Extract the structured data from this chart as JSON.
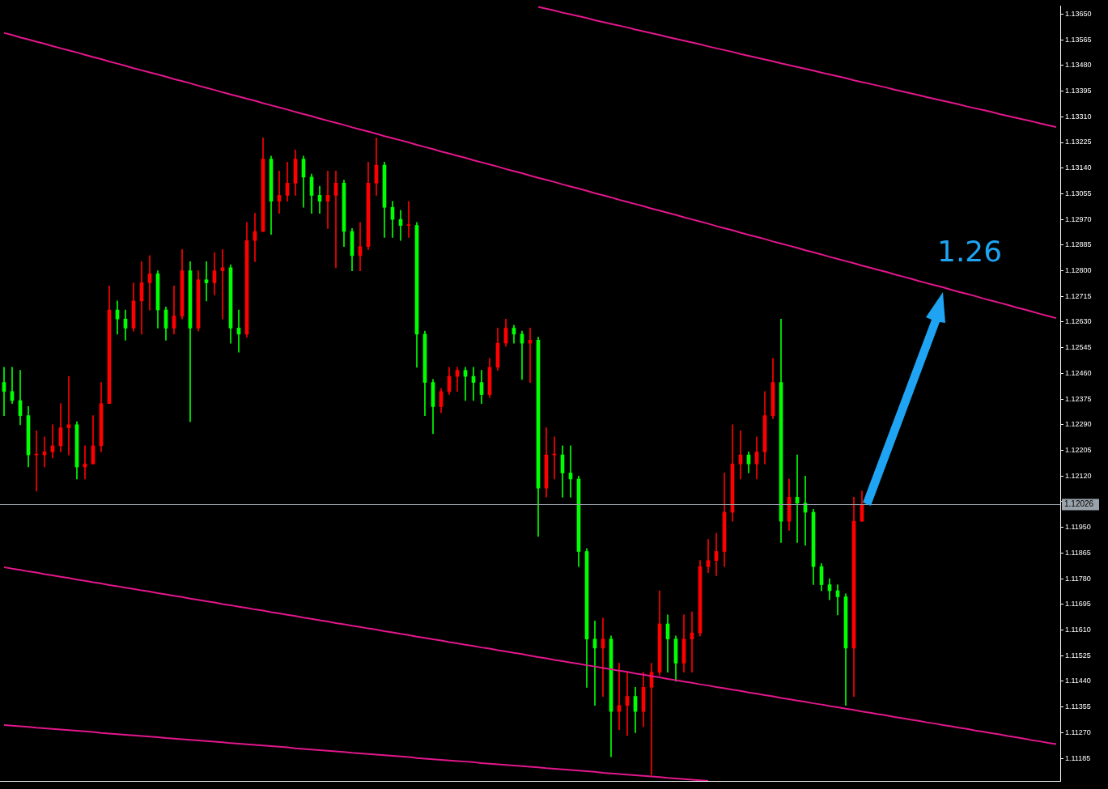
{
  "chart_data": {
    "type": "candlestick",
    "categories": [
      null,
      null,
      null,
      null,
      null,
      null,
      null,
      null,
      null,
      null,
      null,
      null,
      null,
      null,
      null,
      null,
      null,
      null,
      null,
      null,
      null,
      null,
      null,
      null,
      null,
      null,
      null,
      null,
      null,
      null,
      null,
      null,
      null,
      null,
      null,
      null,
      null,
      null,
      null,
      null,
      null,
      null,
      null,
      null,
      null,
      null,
      null,
      null,
      null,
      null,
      null,
      null,
      null,
      null,
      null,
      null,
      null,
      null,
      null,
      null,
      null,
      null,
      null,
      null,
      null,
      null,
      null,
      null,
      null,
      null,
      null,
      null,
      null,
      null,
      null,
      null,
      null,
      null,
      null,
      null,
      null,
      null,
      null,
      null,
      null,
      null,
      null,
      null,
      null,
      null,
      null,
      null,
      null,
      null,
      null,
      null,
      null,
      null,
      null,
      null,
      null,
      null,
      null,
      null,
      null,
      null,
      null,
      null,
      null,
      null,
      null,
      null,
      null,
      null,
      null,
      null,
      null,
      null,
      null,
      null,
      null,
      null,
      null,
      null,
      null,
      null,
      null,
      null,
      null,
      null,
      null
    ],
    "ohlc": [
      [
        1.1243,
        1.1248,
        1.1232,
        1.124
      ],
      [
        1.124,
        1.1248,
        1.1236,
        1.1237
      ],
      [
        1.1237,
        1.1247,
        1.1229,
        1.1232
      ],
      [
        1.1232,
        1.1235,
        1.1215,
        1.1219
      ],
      [
        1.1219,
        1.1227,
        1.1207,
        1.1219
      ],
      [
        1.1219,
        1.1225,
        1.1215,
        1.122
      ],
      [
        1.122,
        1.1229,
        1.1218,
        1.1222
      ],
      [
        1.1222,
        1.1236,
        1.122,
        1.1228
      ],
      [
        1.1228,
        1.1245,
        1.1219,
        1.1229
      ],
      [
        1.1229,
        1.123,
        1.1211,
        1.1215
      ],
      [
        1.1215,
        1.1222,
        1.1211,
        1.1216
      ],
      [
        1.1216,
        1.1232,
        1.1216,
        1.1222
      ],
      [
        1.1222,
        1.1243,
        1.122,
        1.1236
      ],
      [
        1.1236,
        1.1275,
        1.1236,
        1.1267
      ],
      [
        1.1267,
        1.127,
        1.1259,
        1.1264
      ],
      [
        1.1264,
        1.1267,
        1.1257,
        1.1261
      ],
      [
        1.1261,
        1.1276,
        1.126,
        1.127
      ],
      [
        1.127,
        1.1283,
        1.1259,
        1.1276
      ],
      [
        1.1276,
        1.1285,
        1.1267,
        1.1279
      ],
      [
        1.1279,
        1.128,
        1.1261,
        1.1267
      ],
      [
        1.1267,
        1.1268,
        1.1257,
        1.1261
      ],
      [
        1.1261,
        1.1275,
        1.1259,
        1.1265
      ],
      [
        1.1265,
        1.1287,
        1.1264,
        1.128
      ],
      [
        1.128,
        1.1283,
        1.123,
        1.1261
      ],
      [
        1.1261,
        1.128,
        1.126,
        1.1277
      ],
      [
        1.1277,
        1.1283,
        1.127,
        1.1276
      ],
      [
        1.1276,
        1.1286,
        1.1272,
        1.128
      ],
      [
        1.128,
        1.1287,
        1.1264,
        1.1281
      ],
      [
        1.1281,
        1.1282,
        1.1256,
        1.1261
      ],
      [
        1.1261,
        1.1267,
        1.1253,
        1.1259
      ],
      [
        1.1259,
        1.1296,
        1.1258,
        1.129
      ],
      [
        1.129,
        1.1299,
        1.1283,
        1.1293
      ],
      [
        1.1293,
        1.1324,
        1.1293,
        1.1317
      ],
      [
        1.1317,
        1.1318,
        1.1292,
        1.1303
      ],
      [
        1.1303,
        1.1313,
        1.1299,
        1.1305
      ],
      [
        1.1305,
        1.1316,
        1.1303,
        1.1309
      ],
      [
        1.1309,
        1.132,
        1.1305,
        1.1317
      ],
      [
        1.1317,
        1.1318,
        1.1301,
        1.1311
      ],
      [
        1.1311,
        1.1312,
        1.1299,
        1.1305
      ],
      [
        1.1305,
        1.1308,
        1.1299,
        1.1303
      ],
      [
        1.1303,
        1.1313,
        1.1294,
        1.1305
      ],
      [
        1.1305,
        1.1313,
        1.1281,
        1.1309
      ],
      [
        1.1309,
        1.131,
        1.1288,
        1.1293
      ],
      [
        1.1293,
        1.1294,
        1.128,
        1.1285
      ],
      [
        1.1285,
        1.1296,
        1.128,
        1.1288
      ],
      [
        1.1288,
        1.1316,
        1.1287,
        1.1309
      ],
      [
        1.1309,
        1.1324,
        1.1305,
        1.1315
      ],
      [
        1.1315,
        1.1316,
        1.1291,
        1.1301
      ],
      [
        1.1301,
        1.1303,
        1.1291,
        1.1297
      ],
      [
        1.1297,
        1.13,
        1.129,
        1.1295
      ],
      [
        1.1295,
        1.1303,
        1.1291,
        1.1295
      ],
      [
        1.1295,
        1.1296,
        1.1248,
        1.1259
      ],
      [
        1.1259,
        1.126,
        1.1232,
        1.1243
      ],
      [
        1.1243,
        1.1244,
        1.1226,
        1.1235
      ],
      [
        1.1235,
        1.1241,
        1.1233,
        1.124
      ],
      [
        1.124,
        1.1248,
        1.1239,
        1.1245
      ],
      [
        1.1245,
        1.1248,
        1.124,
        1.1247
      ],
      [
        1.1247,
        1.1248,
        1.1237,
        1.1245
      ],
      [
        1.1245,
        1.1248,
        1.1237,
        1.1243
      ],
      [
        1.1243,
        1.1247,
        1.1236,
        1.1239
      ],
      [
        1.1239,
        1.1251,
        1.1238,
        1.1248
      ],
      [
        1.1248,
        1.1261,
        1.1247,
        1.1256
      ],
      [
        1.1256,
        1.1264,
        1.1255,
        1.1261
      ],
      [
        1.1261,
        1.1262,
        1.1256,
        1.1259
      ],
      [
        1.1259,
        1.126,
        1.1244,
        1.1256
      ],
      [
        1.1256,
        1.1261,
        1.1243,
        1.1257
      ],
      [
        1.1257,
        1.1258,
        1.1192,
        1.1208
      ],
      [
        1.1208,
        1.1228,
        1.1205,
        1.1219
      ],
      [
        1.1219,
        1.1225,
        1.1211,
        1.1219
      ],
      [
        1.1219,
        1.1222,
        1.1205,
        1.1213
      ],
      [
        1.1213,
        1.1222,
        1.1205,
        1.1211
      ],
      [
        1.1211,
        1.1212,
        1.1182,
        1.1187
      ],
      [
        1.1187,
        1.1188,
        1.1142,
        1.1158
      ],
      [
        1.1158,
        1.1164,
        1.1136,
        1.1155
      ],
      [
        1.1155,
        1.1165,
        1.1139,
        1.1158
      ],
      [
        1.1158,
        1.1159,
        1.1119,
        1.1134
      ],
      [
        1.1134,
        1.115,
        1.1128,
        1.1136
      ],
      [
        1.1136,
        1.1147,
        1.1126,
        1.1139
      ],
      [
        1.1139,
        1.1142,
        1.1127,
        1.1134
      ],
      [
        1.1134,
        1.1147,
        1.1129,
        1.1142
      ],
      [
        1.1142,
        1.115,
        1.1113,
        1.1147
      ],
      [
        1.1147,
        1.1174,
        1.1146,
        1.1163
      ],
      [
        1.1163,
        1.1166,
        1.1147,
        1.1158
      ],
      [
        1.1158,
        1.1159,
        1.1144,
        1.115
      ],
      [
        1.115,
        1.1166,
        1.1147,
        1.1158
      ],
      [
        1.1158,
        1.1167,
        1.1147,
        1.116
      ],
      [
        1.116,
        1.1184,
        1.1159,
        1.1182
      ],
      [
        1.1182,
        1.1191,
        1.118,
        1.1184
      ],
      [
        1.1184,
        1.1193,
        1.1179,
        1.1187
      ],
      [
        1.1187,
        1.1213,
        1.1182,
        1.12
      ],
      [
        1.12,
        1.1229,
        1.1197,
        1.1216
      ],
      [
        1.1216,
        1.1227,
        1.1211,
        1.1219
      ],
      [
        1.1219,
        1.122,
        1.1213,
        1.1216
      ],
      [
        1.1216,
        1.1225,
        1.1211,
        1.122
      ],
      [
        1.122,
        1.124,
        1.1216,
        1.1232
      ],
      [
        1.1232,
        1.1251,
        1.1231,
        1.1243
      ],
      [
        1.1243,
        1.1264,
        1.119,
        1.1197
      ],
      [
        1.1197,
        1.1211,
        1.1194,
        1.1205
      ],
      [
        1.1205,
        1.1219,
        1.119,
        1.1203
      ],
      [
        1.1203,
        1.1212,
        1.1189,
        1.12
      ],
      [
        1.12,
        1.1201,
        1.1176,
        1.1182
      ],
      [
        1.1182,
        1.1183,
        1.1174,
        1.1176
      ],
      [
        1.1176,
        1.1178,
        1.1171,
        1.1174
      ],
      [
        1.1174,
        1.1176,
        1.1166,
        1.1172
      ],
      [
        1.1172,
        1.1173,
        1.1136,
        1.1155
      ],
      [
        1.1155,
        1.1205,
        1.1139,
        1.1197
      ],
      [
        1.1197,
        1.1207,
        1.1197,
        1.12026
      ],
      null,
      null,
      null,
      null,
      null,
      null,
      null,
      null,
      null,
      null,
      null,
      null,
      null,
      null,
      null,
      null,
      null,
      null,
      null,
      null,
      null,
      null,
      null,
      null
    ],
    "colors": [
      "#00ff00",
      "#00ff00",
      "#00ff00",
      "#00ff00",
      "#ff0000",
      "#ff0000",
      "#ff0000",
      "#ff0000",
      "#ff0000",
      "#00ff00",
      "#ff0000",
      "#ff0000",
      "#ff0000",
      "#ff0000",
      "#00ff00",
      "#00ff00",
      "#ff0000",
      "#ff0000",
      "#ff0000",
      "#00ff00",
      "#00ff00",
      "#ff0000",
      "#ff0000",
      "#00ff00",
      "#ff0000",
      "#00ff00",
      "#ff0000",
      "#ff0000",
      "#00ff00",
      "#00ff00",
      "#ff0000",
      "#ff0000",
      "#ff0000",
      "#00ff00",
      "#ff0000",
      "#ff0000",
      "#ff0000",
      "#00ff00",
      "#00ff00",
      "#00ff00",
      "#ff0000",
      "#ff0000",
      "#00ff00",
      "#00ff00",
      "#ff0000",
      "#ff0000",
      "#ff0000",
      "#00ff00",
      "#00ff00",
      "#00ff00",
      "#ff0000",
      "#00ff00",
      "#00ff00",
      "#00ff00",
      "#ff0000",
      "#ff0000",
      "#ff0000",
      "#00ff00",
      "#00ff00",
      "#00ff00",
      "#ff0000",
      "#ff0000",
      "#ff0000",
      "#00ff00",
      "#00ff00",
      "#ff0000",
      "#00ff00",
      "#ff0000",
      "#ff0000",
      "#00ff00",
      "#00ff00",
      "#00ff00",
      "#00ff00",
      "#00ff00",
      "#ff0000",
      "#00ff00",
      "#ff0000",
      "#ff0000",
      "#00ff00",
      "#ff0000",
      "#ff0000",
      "#ff0000",
      "#00ff00",
      "#00ff00",
      "#ff0000",
      "#ff0000",
      "#ff0000",
      "#ff0000",
      "#ff0000",
      "#ff0000",
      "#ff0000",
      "#ff0000",
      "#00ff00",
      "#ff0000",
      "#ff0000",
      "#ff0000",
      "#00ff00",
      "#ff0000",
      "#00ff00",
      "#00ff00",
      "#00ff00",
      "#00ff00",
      "#00ff00",
      "#00ff00",
      "#00ff00",
      "#ff0000",
      "#ff0000",
      null,
      null,
      null,
      null,
      null,
      null,
      null,
      null,
      null,
      null,
      null,
      null,
      null,
      null,
      null,
      null,
      null,
      null,
      null,
      null,
      null,
      null,
      null,
      null
    ],
    "series": [
      {
        "type": "line",
        "color": "#e3178c",
        "values": [
          null,
          null,
          null,
          null,
          null,
          null,
          null,
          null,
          null,
          null,
          null,
          null,
          null,
          null,
          null,
          null,
          null,
          null,
          null,
          null,
          null,
          null,
          null,
          null,
          null,
          null,
          null,
          null,
          null,
          null,
          null,
          null,
          null,
          null,
          null,
          null,
          null,
          null,
          null,
          null,
          null,
          null,
          null,
          null,
          null,
          null,
          null,
          null,
          null,
          null,
          null,
          null,
          null,
          null,
          null,
          null,
          null,
          null,
          null,
          null,
          null,
          null,
          null,
          null,
          null,
          null,
          1.13674,
          1.13668,
          1.13662,
          1.13655,
          1.13649,
          1.13643,
          1.13637,
          1.1363,
          1.13624,
          1.13618,
          1.13612,
          1.13606,
          1.13599,
          1.13593,
          1.13587,
          1.13581,
          1.13574,
          1.13568,
          1.13562,
          1.13556,
          1.1355,
          1.13543,
          1.13537,
          1.13531,
          1.13525,
          1.13518,
          1.13512,
          1.13506,
          1.135,
          1.13494,
          1.13487,
          1.13481,
          1.13475,
          1.13469,
          1.13463,
          1.13456,
          1.1345,
          1.13444,
          1.13438,
          1.13431,
          1.13425,
          1.13419,
          1.13413,
          1.13407,
          1.134,
          1.13394,
          1.13388,
          1.13382,
          1.13375,
          1.13369,
          1.13363,
          1.13357,
          1.13351,
          1.13344,
          1.13338,
          1.13332,
          1.13326,
          1.13319,
          1.13313,
          1.13307,
          1.13301,
          1.13295,
          1.13288,
          1.13282,
          1.13276
        ]
      },
      {
        "type": "line",
        "color": "#e3178c",
        "values": [
          1.13588,
          1.13581,
          1.13573,
          1.13566,
          1.13559,
          1.13552,
          1.13544,
          1.13537,
          1.1353,
          1.13523,
          1.13515,
          1.13508,
          1.13501,
          1.13493,
          1.13486,
          1.13479,
          1.13471,
          1.13464,
          1.13457,
          1.1345,
          1.13443,
          1.13435,
          1.13428,
          1.13421,
          1.13413,
          1.13406,
          1.13399,
          1.13391,
          1.13384,
          1.13377,
          1.1337,
          1.13363,
          1.13355,
          1.13348,
          1.13341,
          1.13334,
          1.13326,
          1.13319,
          1.13312,
          1.13304,
          1.13297,
          1.1329,
          1.13283,
          1.13275,
          1.13268,
          1.13261,
          1.13254,
          1.13246,
          1.13239,
          1.13232,
          1.13225,
          1.13217,
          1.1321,
          1.13203,
          1.13195,
          1.13188,
          1.13181,
          1.13174,
          1.13166,
          1.13159,
          1.13152,
          1.13145,
          1.13137,
          1.1313,
          1.13123,
          1.13115,
          1.13108,
          1.13101,
          1.13094,
          1.13086,
          1.13079,
          1.13072,
          1.13065,
          1.13057,
          1.1305,
          1.13043,
          1.13035,
          1.13028,
          1.13021,
          1.13014,
          1.13006,
          1.12999,
          1.12992,
          1.12985,
          1.12977,
          1.1297,
          1.12963,
          1.12956,
          1.12948,
          1.12941,
          1.12934,
          1.12926,
          1.12919,
          1.12912,
          1.12905,
          1.12897,
          1.1289,
          1.12883,
          1.12876,
          1.12868,
          1.12861,
          1.12854,
          1.12846,
          1.12839,
          1.12832,
          1.12825,
          1.12817,
          1.1281,
          1.12803,
          1.12796,
          1.12788,
          1.12781,
          1.12774,
          1.12766,
          1.12759,
          1.12752,
          1.12745,
          1.12737,
          1.1273,
          1.12723,
          1.12716,
          1.12708,
          1.12701,
          1.12694,
          1.12687,
          1.12679,
          1.12672,
          1.12665,
          1.12657,
          1.1265,
          1.12643
        ]
      },
      {
        "type": "line",
        "color": "#e3178c",
        "values": [
          1.11818,
          1.11813,
          1.11809,
          1.11804,
          1.118,
          1.11795,
          1.11791,
          1.11786,
          1.11782,
          1.11777,
          1.11773,
          1.11768,
          1.11764,
          1.11759,
          1.11755,
          1.1175,
          1.11746,
          1.11741,
          1.11737,
          1.11732,
          1.11728,
          1.11723,
          1.11719,
          1.11714,
          1.1171,
          1.11705,
          1.11701,
          1.11696,
          1.11692,
          1.11687,
          1.11683,
          1.11678,
          1.11674,
          1.11669,
          1.11665,
          1.1166,
          1.11656,
          1.11651,
          1.11647,
          1.11642,
          1.11638,
          1.11633,
          1.11629,
          1.11624,
          1.1162,
          1.11615,
          1.11611,
          1.11606,
          1.11602,
          1.11597,
          1.11593,
          1.11588,
          1.11584,
          1.11579,
          1.11575,
          1.1157,
          1.11566,
          1.11561,
          1.11557,
          1.11552,
          1.11548,
          1.11543,
          1.11539,
          1.11534,
          1.1153,
          1.11525,
          1.1152,
          1.11516,
          1.11511,
          1.11507,
          1.11502,
          1.11498,
          1.11493,
          1.11489,
          1.11484,
          1.1148,
          1.11475,
          1.11471,
          1.11466,
          1.11462,
          1.11457,
          1.11453,
          1.11448,
          1.11444,
          1.11439,
          1.11435,
          1.1143,
          1.11426,
          1.11421,
          1.11417,
          1.11412,
          1.11408,
          1.11403,
          1.11399,
          1.11394,
          1.1139,
          1.11385,
          1.11381,
          1.11376,
          1.11372,
          1.11367,
          1.11363,
          1.11358,
          1.11354,
          1.11349,
          1.11345,
          1.1134,
          1.11336,
          1.11331,
          1.11327,
          1.11322,
          1.11318,
          1.11313,
          1.11309,
          1.11304,
          1.113,
          1.11295,
          1.11291,
          1.11286,
          1.11282,
          1.11277,
          1.11273,
          1.11268,
          1.11264,
          1.11259,
          1.11255,
          1.1125,
          1.11245,
          1.11241,
          1.11236,
          1.11232
        ]
      },
      {
        "type": "line",
        "color": "#e3178c",
        "values": [
          1.11295,
          1.11293,
          1.11291,
          1.11289,
          1.11286,
          1.11284,
          1.11282,
          1.1128,
          1.11278,
          1.11276,
          1.11274,
          1.11272,
          1.11269,
          1.11267,
          1.11265,
          1.11263,
          1.11261,
          1.11259,
          1.11257,
          1.11255,
          1.11252,
          1.1125,
          1.11248,
          1.11246,
          1.11244,
          1.11242,
          1.1124,
          1.11238,
          1.11235,
          1.11233,
          1.11231,
          1.11229,
          1.11227,
          1.11225,
          1.11223,
          1.11221,
          1.11218,
          1.11216,
          1.11214,
          1.11212,
          1.1121,
          1.11208,
          1.11206,
          1.11203,
          1.11201,
          1.11199,
          1.11197,
          1.11195,
          1.11193,
          1.11191,
          1.11189,
          1.11186,
          1.11184,
          1.11182,
          1.1118,
          1.11178,
          1.11176,
          1.11174,
          1.11172,
          1.11169,
          1.11167,
          1.11165,
          1.11163,
          1.11161,
          1.11159,
          1.11157,
          1.11155,
          1.11152,
          1.1115,
          1.11148,
          1.11146,
          1.11144,
          1.11142,
          1.1114,
          1.11137,
          1.11135,
          1.11133,
          1.11131,
          1.11129,
          1.11127,
          1.11125,
          1.11123,
          1.1112,
          1.11118,
          1.11116,
          1.11114,
          1.11112,
          1.1111,
          null,
          null,
          null,
          null,
          null,
          null,
          null,
          null,
          null,
          null,
          null,
          null,
          null,
          null,
          null,
          null,
          null,
          null,
          null,
          null,
          null,
          null,
          null,
          null,
          null,
          null,
          null,
          null,
          null,
          null,
          null,
          null,
          null,
          null,
          null,
          null,
          null,
          null,
          null,
          null,
          null,
          null,
          null
        ]
      }
    ],
    "ylim": [
      1.1111,
      1.13677
    ],
    "yticks": [
      {
        "value": 1.1365,
        "label": "1.13650"
      },
      {
        "value": 1.13565,
        "label": "1.13565"
      },
      {
        "value": 1.1348,
        "label": "1.13480"
      },
      {
        "value": 1.13395,
        "label": "1.13395"
      },
      {
        "value": 1.1331,
        "label": "1.13310"
      },
      {
        "value": 1.13225,
        "label": "1.13225"
      },
      {
        "value": 1.1314,
        "label": "1.13140"
      },
      {
        "value": 1.13055,
        "label": "1.13055"
      },
      {
        "value": 1.1297,
        "label": "1.12970"
      },
      {
        "value": 1.12885,
        "label": "1.12885"
      },
      {
        "value": 1.128,
        "label": "1.12800"
      },
      {
        "value": 1.12715,
        "label": "1.12715"
      },
      {
        "value": 1.1263,
        "label": "1.12630"
      },
      {
        "value": 1.12545,
        "label": "1.12545"
      },
      {
        "value": 1.1246,
        "label": "1.12460"
      },
      {
        "value": 1.12375,
        "label": "1.12375"
      },
      {
        "value": 1.1229,
        "label": "1.12290"
      },
      {
        "value": 1.12205,
        "label": "1.12205"
      },
      {
        "value": 1.1212,
        "label": "1.12120"
      },
      {
        "value": 1.12035,
        "label": null
      },
      {
        "value": 1.1195,
        "label": "1.11950"
      },
      {
        "value": 1.11865,
        "label": "1.11865"
      },
      {
        "value": 1.1178,
        "label": "1.11780"
      },
      {
        "value": 1.11695,
        "label": "1.11695"
      },
      {
        "value": 1.1161,
        "label": "1.11610"
      },
      {
        "value": 1.11525,
        "label": "1.11525"
      },
      {
        "value": 1.1144,
        "label": "1.11440"
      },
      {
        "value": 1.11355,
        "label": "1.11355"
      },
      {
        "value": 1.1127,
        "label": "1.11270"
      },
      {
        "value": 1.11185,
        "label": "1.11185"
      }
    ],
    "ref_lines": [
      {
        "axis": "y",
        "value": 1.12026,
        "label": "1.12026",
        "color": "#9aa3ab"
      }
    ],
    "annotations": [
      "1.26"
    ],
    "legend": false
  }
}
